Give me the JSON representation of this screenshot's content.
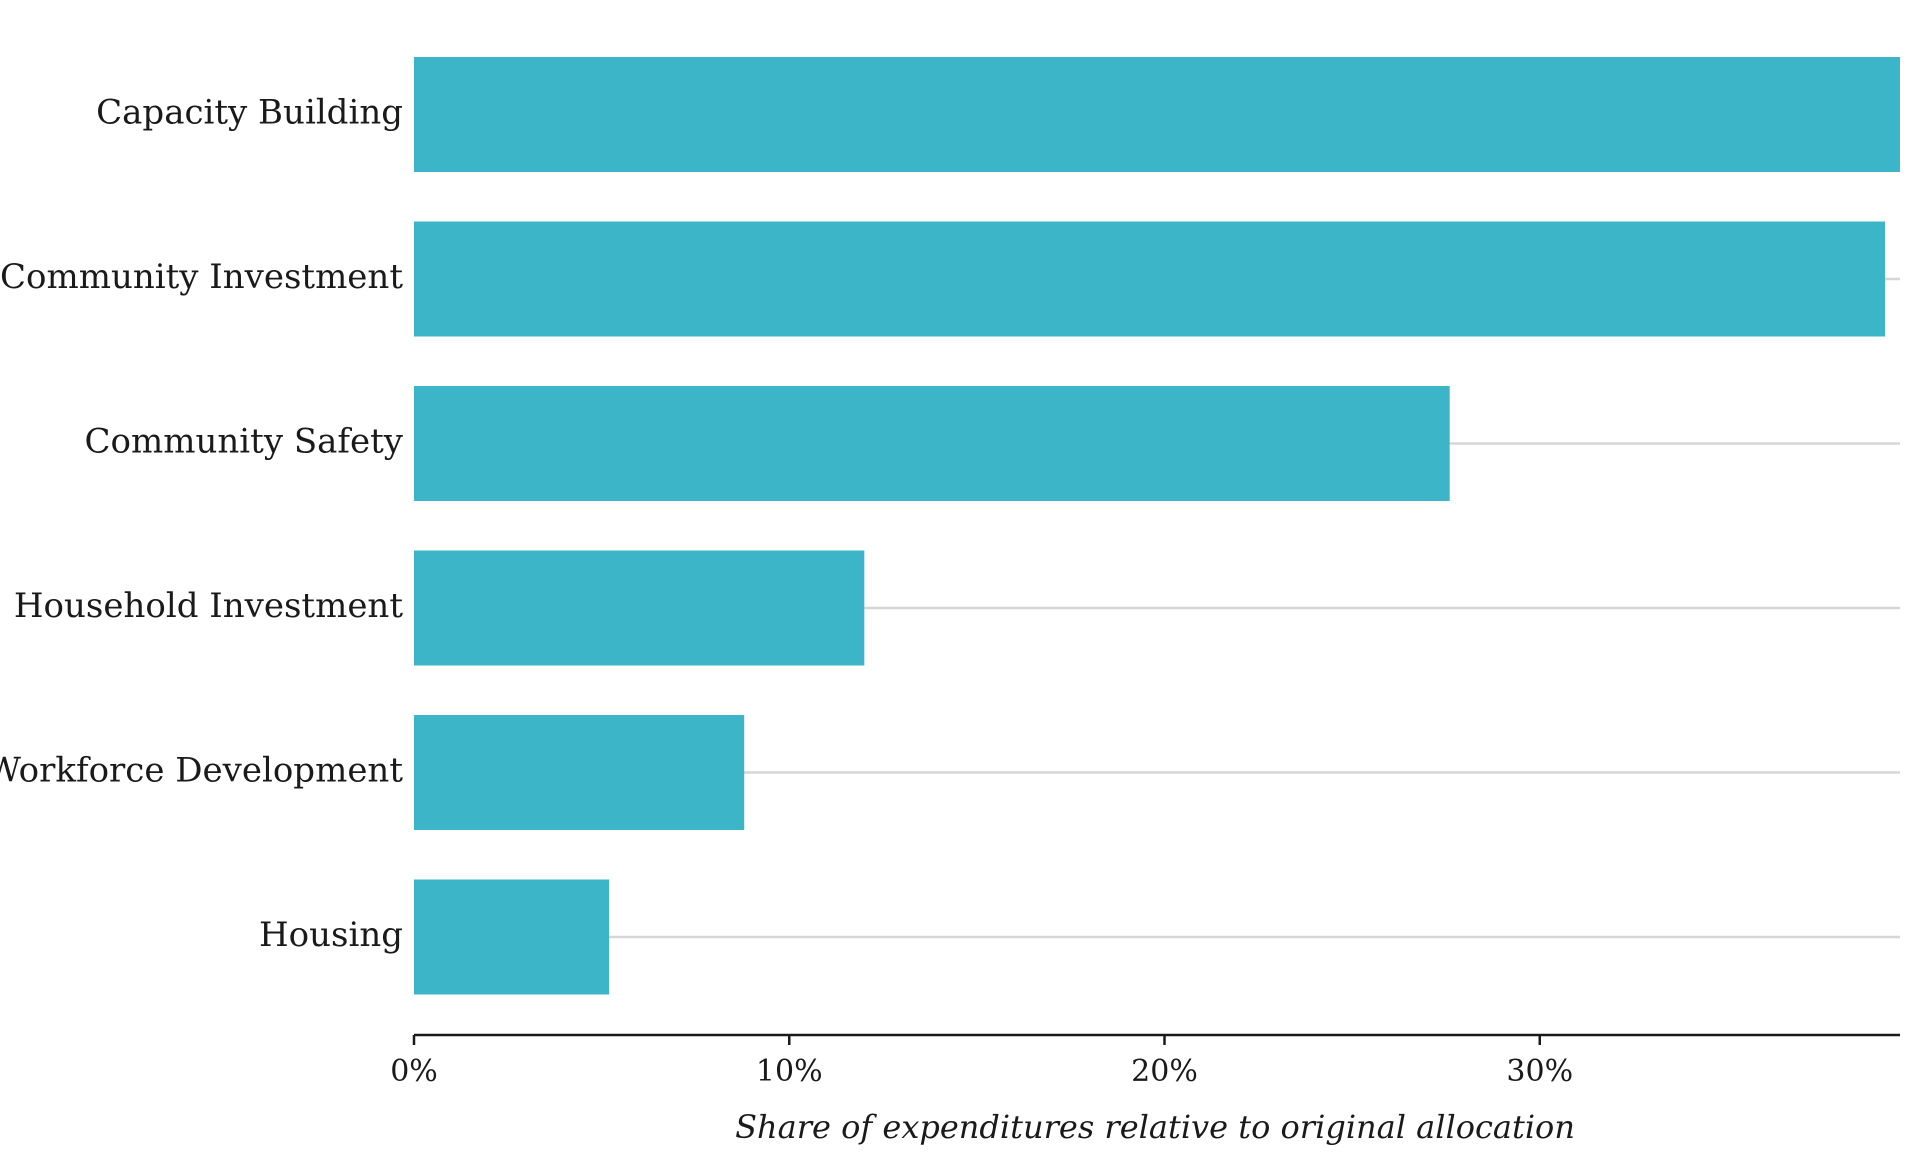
{
  "chart_data": {
    "type": "bar",
    "orientation": "horizontal",
    "categories": [
      "Capacity Building",
      "Community Investment",
      "Community Safety",
      "Household Investment",
      "Workforce Development",
      "Housing"
    ],
    "values": [
      39.6,
      39.2,
      27.6,
      12.0,
      8.8,
      5.2
    ],
    "value_unit": "%",
    "xlabel": "Share of expenditures relative to original allocation",
    "ylabel": "",
    "xlim": [
      0,
      39.6
    ],
    "x_ticks": [
      0,
      10,
      20,
      30
    ],
    "x_tick_labels": [
      "0%",
      "10%",
      "20%",
      "30%"
    ],
    "grid": "horizontal row lines",
    "legend": "none",
    "colors": {
      "bar": "#3db5c9",
      "gridline": "#d6d6d6",
      "axis": "#1a1a1a"
    }
  }
}
